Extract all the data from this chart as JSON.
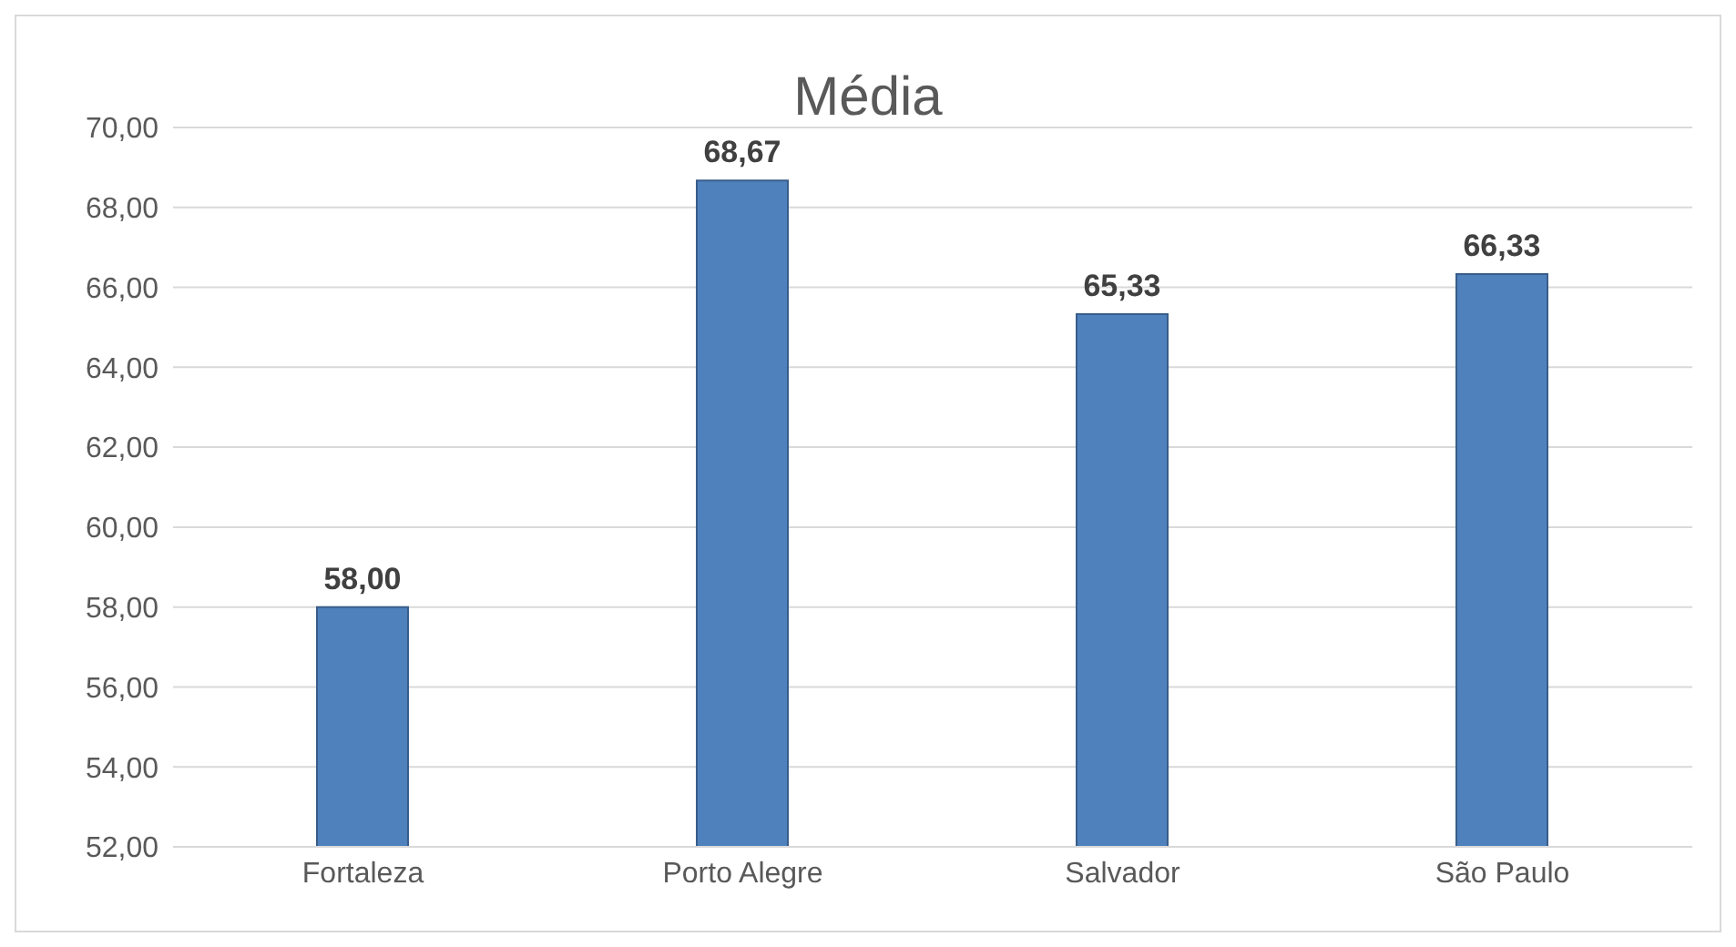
{
  "chart_data": {
    "type": "bar",
    "title": "Média",
    "categories": [
      "Fortaleza",
      "Porto Alegre",
      "Salvador",
      "São Paulo"
    ],
    "values": [
      58,
      68.67,
      65.33,
      66.33
    ],
    "value_labels": [
      "58,00",
      "68,67",
      "65,33",
      "66,33"
    ],
    "color": "#4f81bd",
    "ylim": [
      52,
      70
    ],
    "yticks": [
      {
        "value": 52,
        "label": "52,00"
      },
      {
        "value": 54,
        "label": "54,00"
      },
      {
        "value": 56,
        "label": "56,00"
      },
      {
        "value": 58,
        "label": "58,00"
      },
      {
        "value": 60,
        "label": "60,00"
      },
      {
        "value": 62,
        "label": "62,00"
      },
      {
        "value": 64,
        "label": "64,00"
      },
      {
        "value": 66,
        "label": "66,00"
      },
      {
        "value": 68,
        "label": "68,00"
      },
      {
        "value": 70,
        "label": "70,00"
      }
    ],
    "grid": "y",
    "legend": false
  }
}
